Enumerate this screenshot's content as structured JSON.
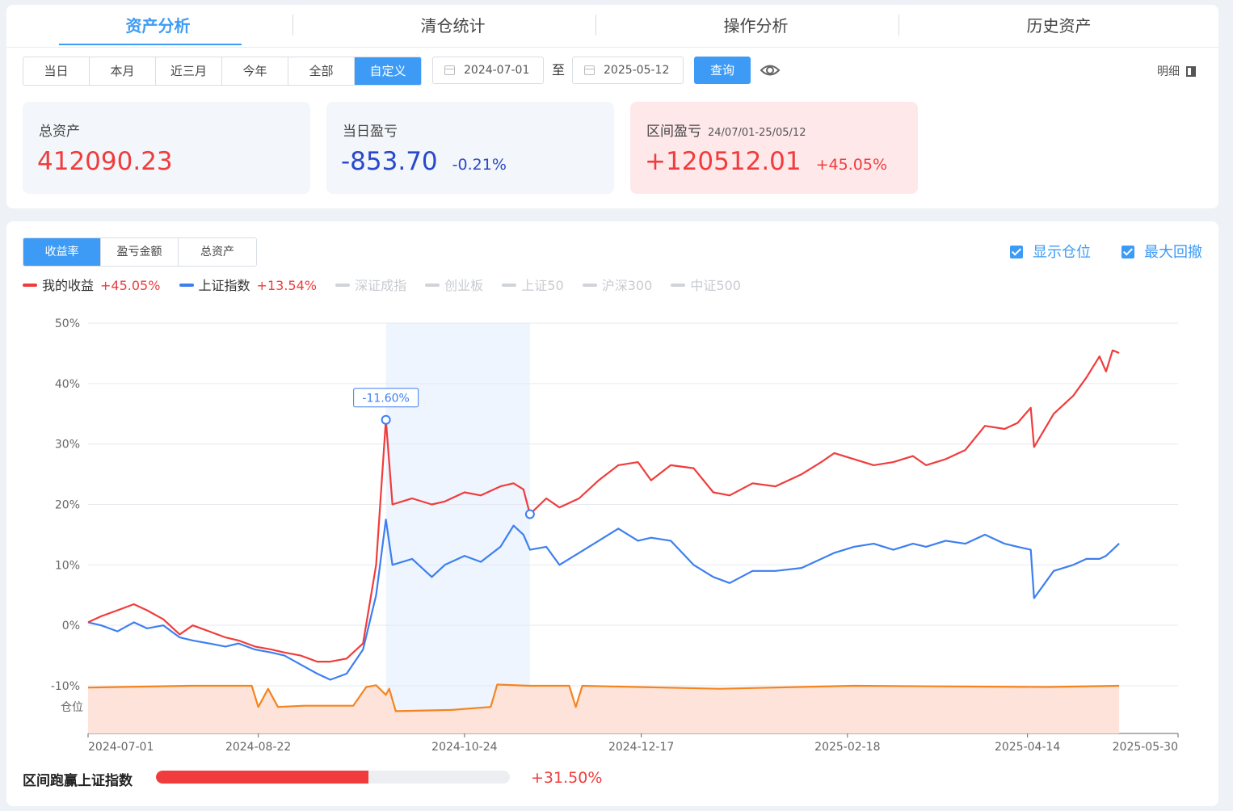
{
  "main_tabs": [
    "资产分析",
    "清仓统计",
    "操作分析",
    "历史资产"
  ],
  "active_tab": 0,
  "range_buttons": [
    "当日",
    "本月",
    "近三月",
    "今年",
    "全部",
    "自定义"
  ],
  "active_range": 5,
  "date_from": "2024-07-01",
  "date_sep": "至",
  "date_to": "2025-05-12",
  "query_label": "查询",
  "detail_label": "明细",
  "stats": {
    "total_assets": {
      "label": "总资产",
      "value": "412090.23"
    },
    "daily_pnl": {
      "label": "当日盈亏",
      "value": "-853.70",
      "pct": "-0.21%"
    },
    "range_pnl": {
      "label": "区间盈亏",
      "sub": "24/07/01-25/05/12",
      "value": "+120512.01",
      "pct": "+45.05%"
    }
  },
  "chart_tabs": [
    "收益率",
    "盈亏金额",
    "总资产"
  ],
  "active_chart_tab": 0,
  "checkboxes": {
    "show_position": "显示仓位",
    "max_drawdown": "最大回撤"
  },
  "legend": {
    "mine": {
      "name": "我的收益",
      "ret": "+45.05%"
    },
    "sh": {
      "name": "上证指数",
      "ret": "+13.54%"
    },
    "inactive": [
      "深证成指",
      "创业板",
      "上证50",
      "沪深300",
      "中证500"
    ]
  },
  "drawdown_label": "-11.60%",
  "position_axis_label": "仓位",
  "colors": {
    "accent": "#3e9bf5",
    "mine": "#f03c3c",
    "index": "#3d7ff0",
    "position": "#f5841f"
  },
  "beat_label": "区间跑赢上证指数",
  "beat_value": "+31.50%",
  "beat_fraction": 0.6,
  "chart_data": {
    "type": "line",
    "y_ticks": [
      "50%",
      "40%",
      "30%",
      "20%",
      "10%",
      "0%",
      "-10%"
    ],
    "ylim": [
      -10,
      50
    ],
    "x_ticks": [
      "2024-07-01",
      "2024-08-22",
      "2024-10-24",
      "2024-12-17",
      "2025-02-18",
      "2025-04-14",
      "2025-05-30"
    ],
    "x_range": [
      "2024-07-01",
      "2025-05-30"
    ],
    "drawdown_range": [
      "2024-09-30",
      "2024-11-13"
    ],
    "series": [
      {
        "name": "我的收益",
        "points": [
          [
            "2024-07-01",
            0.5
          ],
          [
            "2024-07-05",
            1.5
          ],
          [
            "2024-07-10",
            2.5
          ],
          [
            "2024-07-15",
            3.5
          ],
          [
            "2024-07-19",
            2.5
          ],
          [
            "2024-07-24",
            1
          ],
          [
            "2024-07-29",
            -1.5
          ],
          [
            "2024-08-02",
            0
          ],
          [
            "2024-08-07",
            -1
          ],
          [
            "2024-08-12",
            -2
          ],
          [
            "2024-08-16",
            -2.5
          ],
          [
            "2024-08-21",
            -3.5
          ],
          [
            "2024-08-26",
            -4
          ],
          [
            "2024-08-30",
            -4.5
          ],
          [
            "2024-09-04",
            -5
          ],
          [
            "2024-09-09",
            -6
          ],
          [
            "2024-09-13",
            -6
          ],
          [
            "2024-09-18",
            -5.5
          ],
          [
            "2024-09-23",
            -3
          ],
          [
            "2024-09-27",
            10
          ],
          [
            "2024-09-30",
            34
          ],
          [
            "2024-10-02",
            20
          ],
          [
            "2024-10-08",
            21
          ],
          [
            "2024-10-14",
            20
          ],
          [
            "2024-10-18",
            20.5
          ],
          [
            "2024-10-24",
            22
          ],
          [
            "2024-10-29",
            21.5
          ],
          [
            "2024-11-04",
            23
          ],
          [
            "2024-11-08",
            23.5
          ],
          [
            "2024-11-11",
            22.5
          ],
          [
            "2024-11-13",
            18.4
          ],
          [
            "2024-11-18",
            21
          ],
          [
            "2024-11-22",
            19.5
          ],
          [
            "2024-11-28",
            21
          ],
          [
            "2024-12-04",
            24
          ],
          [
            "2024-12-10",
            26.5
          ],
          [
            "2024-12-16",
            27
          ],
          [
            "2024-12-20",
            24
          ],
          [
            "2024-12-26",
            26.5
          ],
          [
            "2025-01-02",
            26
          ],
          [
            "2025-01-08",
            22
          ],
          [
            "2025-01-13",
            21.5
          ],
          [
            "2025-01-20",
            23.5
          ],
          [
            "2025-01-27",
            23
          ],
          [
            "2025-02-04",
            25
          ],
          [
            "2025-02-10",
            27
          ],
          [
            "2025-02-14",
            28.5
          ],
          [
            "2025-02-20",
            27.5
          ],
          [
            "2025-02-26",
            26.5
          ],
          [
            "2025-03-04",
            27
          ],
          [
            "2025-03-10",
            28
          ],
          [
            "2025-03-14",
            26.5
          ],
          [
            "2025-03-20",
            27.5
          ],
          [
            "2025-03-26",
            29
          ],
          [
            "2025-04-01",
            33
          ],
          [
            "2025-04-07",
            32.5
          ],
          [
            "2025-04-11",
            33.5
          ],
          [
            "2025-04-15",
            36
          ],
          [
            "2025-04-16",
            29.5
          ],
          [
            "2025-04-22",
            35
          ],
          [
            "2025-04-28",
            38
          ],
          [
            "2025-05-02",
            41
          ],
          [
            "2025-05-06",
            44.5
          ],
          [
            "2025-05-08",
            42
          ],
          [
            "2025-05-10",
            45.5
          ],
          [
            "2025-05-12",
            45.05
          ]
        ]
      },
      {
        "name": "上证指数",
        "points": [
          [
            "2024-07-01",
            0.5
          ],
          [
            "2024-07-05",
            0
          ],
          [
            "2024-07-10",
            -1
          ],
          [
            "2024-07-15",
            0.5
          ],
          [
            "2024-07-19",
            -0.5
          ],
          [
            "2024-07-24",
            0
          ],
          [
            "2024-07-29",
            -2
          ],
          [
            "2024-08-02",
            -2.5
          ],
          [
            "2024-08-07",
            -3
          ],
          [
            "2024-08-12",
            -3.5
          ],
          [
            "2024-08-16",
            -3
          ],
          [
            "2024-08-21",
            -4
          ],
          [
            "2024-08-26",
            -4.5
          ],
          [
            "2024-08-30",
            -5
          ],
          [
            "2024-09-04",
            -6.5
          ],
          [
            "2024-09-09",
            -8
          ],
          [
            "2024-09-13",
            -9
          ],
          [
            "2024-09-18",
            -8
          ],
          [
            "2024-09-23",
            -4
          ],
          [
            "2024-09-27",
            5
          ],
          [
            "2024-09-30",
            17.5
          ],
          [
            "2024-10-02",
            10
          ],
          [
            "2024-10-08",
            11
          ],
          [
            "2024-10-14",
            8
          ],
          [
            "2024-10-18",
            10
          ],
          [
            "2024-10-24",
            11.5
          ],
          [
            "2024-10-29",
            10.5
          ],
          [
            "2024-11-04",
            13
          ],
          [
            "2024-11-08",
            16.5
          ],
          [
            "2024-11-11",
            15
          ],
          [
            "2024-11-13",
            12.5
          ],
          [
            "2024-11-18",
            13
          ],
          [
            "2024-11-22",
            10
          ],
          [
            "2024-11-28",
            12
          ],
          [
            "2024-12-04",
            14
          ],
          [
            "2024-12-10",
            16
          ],
          [
            "2024-12-16",
            14
          ],
          [
            "2024-12-20",
            14.5
          ],
          [
            "2024-12-26",
            14
          ],
          [
            "2025-01-02",
            10
          ],
          [
            "2025-01-08",
            8
          ],
          [
            "2025-01-13",
            7
          ],
          [
            "2025-01-20",
            9
          ],
          [
            "2025-01-27",
            9
          ],
          [
            "2025-02-04",
            9.5
          ],
          [
            "2025-02-10",
            11
          ],
          [
            "2025-02-14",
            12
          ],
          [
            "2025-02-20",
            13
          ],
          [
            "2025-02-26",
            13.5
          ],
          [
            "2025-03-04",
            12.5
          ],
          [
            "2025-03-10",
            13.5
          ],
          [
            "2025-03-14",
            13
          ],
          [
            "2025-03-20",
            14
          ],
          [
            "2025-03-26",
            13.5
          ],
          [
            "2025-04-01",
            15
          ],
          [
            "2025-04-07",
            13.5
          ],
          [
            "2025-04-11",
            13
          ],
          [
            "2025-04-15",
            12.5
          ],
          [
            "2025-04-16",
            4.5
          ],
          [
            "2025-04-22",
            9
          ],
          [
            "2025-04-28",
            10
          ],
          [
            "2025-05-02",
            11
          ],
          [
            "2025-05-06",
            11
          ],
          [
            "2025-05-08",
            11.5
          ],
          [
            "2025-05-10",
            12.5
          ],
          [
            "2025-05-12",
            13.54
          ]
        ]
      },
      {
        "name": "仓位",
        "points": [
          [
            "2024-07-01",
            -10.3
          ],
          [
            "2024-08-01",
            -10
          ],
          [
            "2024-08-20",
            -10
          ],
          [
            "2024-08-22",
            -13.5
          ],
          [
            "2024-08-25",
            -10.5
          ],
          [
            "2024-08-28",
            -13.5
          ],
          [
            "2024-09-05",
            -13.3
          ],
          [
            "2024-09-20",
            -13.3
          ],
          [
            "2024-09-24",
            -10.2
          ],
          [
            "2024-09-27",
            -9.9
          ],
          [
            "2024-09-30",
            -11.5
          ],
          [
            "2024-10-01",
            -10.5
          ],
          [
            "2024-10-03",
            -14.2
          ],
          [
            "2024-10-20",
            -14
          ],
          [
            "2024-11-01",
            -13.5
          ],
          [
            "2024-11-03",
            -9.8
          ],
          [
            "2024-11-13",
            -10
          ],
          [
            "2024-11-25",
            -10
          ],
          [
            "2024-11-27",
            -13.5
          ],
          [
            "2024-11-29",
            -10
          ],
          [
            "2025-01-10",
            -10.5
          ],
          [
            "2025-02-20",
            -10
          ],
          [
            "2025-04-20",
            -10.2
          ],
          [
            "2025-05-12",
            -10
          ]
        ]
      }
    ]
  }
}
